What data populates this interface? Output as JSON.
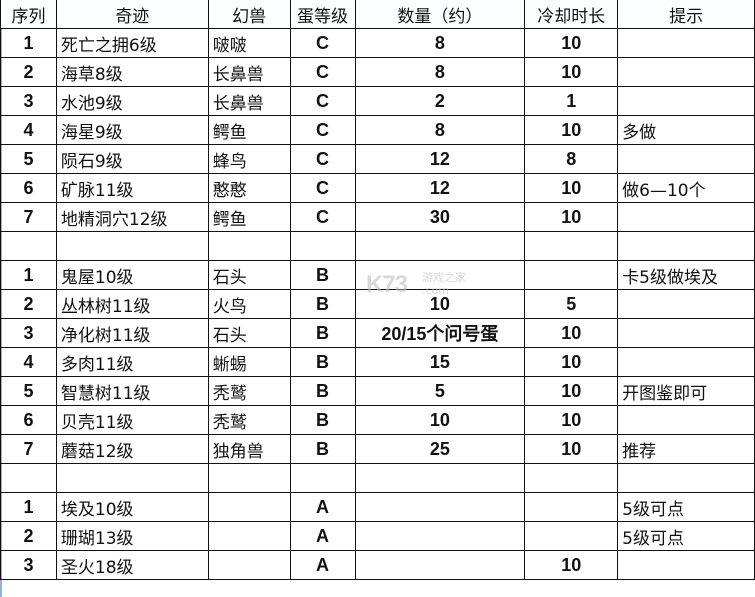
{
  "headers": [
    "序列",
    "奇迹",
    "幻兽",
    "蛋等级",
    "数量（约）",
    "冷却时长",
    "提示"
  ],
  "rows": [
    [
      "1",
      "死亡之拥6级",
      "啵啵",
      "C",
      "8",
      "10",
      ""
    ],
    [
      "2",
      "海草8级",
      "长鼻兽",
      "C",
      "8",
      "10",
      ""
    ],
    [
      "3",
      "水池9级",
      "长鼻兽",
      "C",
      "2",
      "1",
      ""
    ],
    [
      "4",
      "海星9级",
      "鳄鱼",
      "C",
      "8",
      "10",
      "多做"
    ],
    [
      "5",
      "陨石9级",
      "蜂鸟",
      "C",
      "12",
      "8",
      ""
    ],
    [
      "6",
      "矿脉11级",
      "憨憨",
      "C",
      "12",
      "10",
      "做6—10个"
    ],
    [
      "7",
      "地精洞穴12级",
      "鳄鱼",
      "C",
      "30",
      "10",
      ""
    ],
    [
      "",
      "",
      "",
      "",
      "",
      "",
      ""
    ],
    [
      "1",
      "鬼屋10级",
      "石头",
      "B",
      "",
      "",
      "卡5级做埃及"
    ],
    [
      "2",
      "丛林树11级",
      "火鸟",
      "B",
      "10",
      "5",
      ""
    ],
    [
      "3",
      "净化树11级",
      "石头",
      "B",
      "20/15个问号蛋",
      "10",
      ""
    ],
    [
      "4",
      "多肉11级",
      "蜥蜴",
      "B",
      "15",
      "10",
      ""
    ],
    [
      "5",
      "智慧树11级",
      "秃鹫",
      "B",
      "5",
      "10",
      "开图鉴即可"
    ],
    [
      "6",
      "贝壳11级",
      "秃鹫",
      "B",
      "10",
      "10",
      ""
    ],
    [
      "7",
      "蘑菇12级",
      "独角兽",
      "B",
      "25",
      "10",
      "推荐"
    ],
    [
      "",
      "",
      "",
      "",
      "",
      "",
      ""
    ],
    [
      "1",
      "埃及10级",
      "",
      "A",
      "",
      "",
      "5级可点"
    ],
    [
      "2",
      "珊瑚13级",
      "",
      "A",
      "",
      "",
      "5级可点"
    ],
    [
      "3",
      "圣火18级",
      "",
      "A",
      "",
      "10",
      ""
    ]
  ],
  "watermark": {
    "logo": "K73",
    "name": "游戏之家",
    "domain": ".com"
  }
}
